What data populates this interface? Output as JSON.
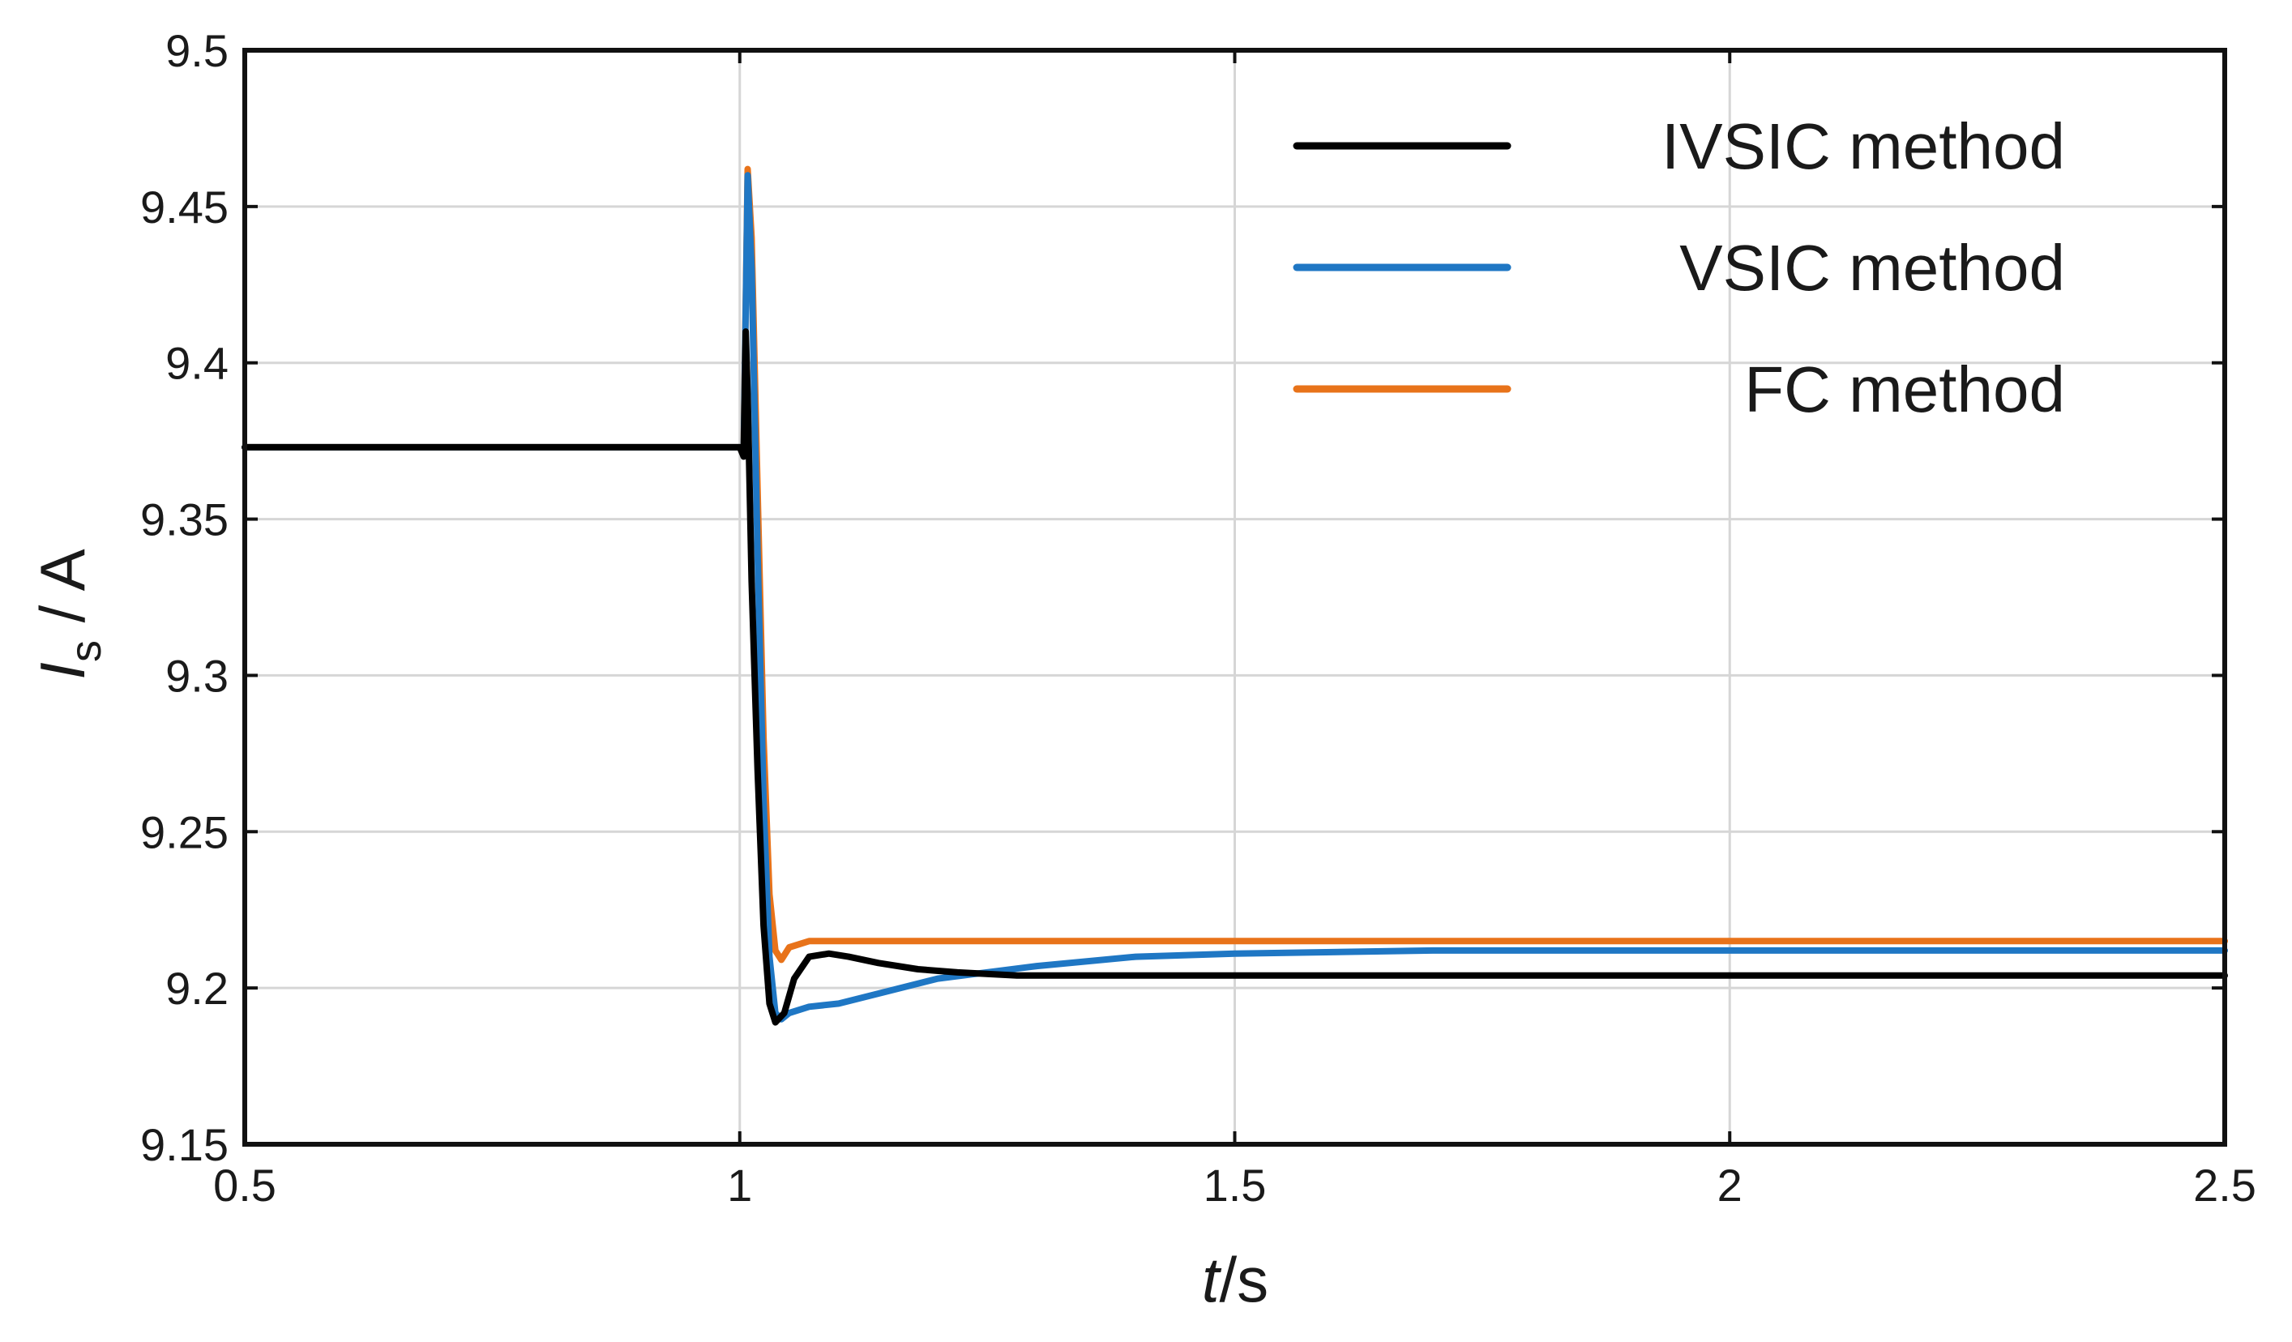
{
  "chart_data": {
    "type": "line",
    "ylabel_main": "I",
    "ylabel_sub": "s",
    "ylabel_unit": " / A",
    "xlabel_main": "t",
    "xlabel_unit": "/s",
    "xlim": [
      0.5,
      2.5
    ],
    "ylim": [
      9.15,
      9.5
    ],
    "grid": true,
    "legend_position": "top-right",
    "x_ticks": [
      0.5,
      1,
      1.5,
      2,
      2.5
    ],
    "x_tick_labels": [
      "0.5",
      "1",
      "1.5",
      "2",
      "2.5"
    ],
    "y_ticks": [
      9.15,
      9.2,
      9.25,
      9.3,
      9.35,
      9.4,
      9.45,
      9.5
    ],
    "y_tick_labels": [
      "9.15",
      "9.2",
      "9.25",
      "9.3",
      "9.35",
      "9.4",
      "9.45",
      "9.5"
    ],
    "series": [
      {
        "name": "IVSIC method",
        "color": "#000000",
        "points": [
          [
            0.5,
            9.373
          ],
          [
            1.0,
            9.373
          ],
          [
            1.004,
            9.37
          ],
          [
            1.006,
            9.41
          ],
          [
            1.008,
            9.39
          ],
          [
            1.012,
            9.33
          ],
          [
            1.018,
            9.27
          ],
          [
            1.024,
            9.22
          ],
          [
            1.03,
            9.195
          ],
          [
            1.036,
            9.189
          ],
          [
            1.045,
            9.192
          ],
          [
            1.055,
            9.203
          ],
          [
            1.07,
            9.21
          ],
          [
            1.09,
            9.211
          ],
          [
            1.11,
            9.21
          ],
          [
            1.14,
            9.208
          ],
          [
            1.18,
            9.206
          ],
          [
            1.22,
            9.205
          ],
          [
            1.28,
            9.204
          ],
          [
            1.4,
            9.204
          ],
          [
            1.6,
            9.204
          ],
          [
            2.0,
            9.204
          ],
          [
            2.5,
            9.204
          ]
        ]
      },
      {
        "name": "VSIC method",
        "color": "#1f77c4",
        "points": [
          [
            0.5,
            9.373
          ],
          [
            1.0,
            9.373
          ],
          [
            1.004,
            9.372
          ],
          [
            1.008,
            9.46
          ],
          [
            1.012,
            9.43
          ],
          [
            1.018,
            9.34
          ],
          [
            1.024,
            9.26
          ],
          [
            1.03,
            9.21
          ],
          [
            1.036,
            9.192
          ],
          [
            1.042,
            9.19
          ],
          [
            1.05,
            9.192
          ],
          [
            1.07,
            9.194
          ],
          [
            1.1,
            9.195
          ],
          [
            1.15,
            9.199
          ],
          [
            1.2,
            9.203
          ],
          [
            1.3,
            9.207
          ],
          [
            1.4,
            9.21
          ],
          [
            1.5,
            9.211
          ],
          [
            1.7,
            9.212
          ],
          [
            2.0,
            9.212
          ],
          [
            2.5,
            9.212
          ]
        ]
      },
      {
        "name": "FC method",
        "color": "#e8731a",
        "points": [
          [
            0.5,
            9.373
          ],
          [
            1.0,
            9.373
          ],
          [
            1.004,
            9.373
          ],
          [
            1.008,
            9.462
          ],
          [
            1.012,
            9.44
          ],
          [
            1.018,
            9.36
          ],
          [
            1.024,
            9.28
          ],
          [
            1.03,
            9.23
          ],
          [
            1.036,
            9.212
          ],
          [
            1.042,
            9.209
          ],
          [
            1.05,
            9.213
          ],
          [
            1.07,
            9.215
          ],
          [
            1.1,
            9.215
          ],
          [
            1.3,
            9.215
          ],
          [
            1.6,
            9.215
          ],
          [
            2.0,
            9.215
          ],
          [
            2.5,
            9.215
          ]
        ]
      }
    ]
  }
}
